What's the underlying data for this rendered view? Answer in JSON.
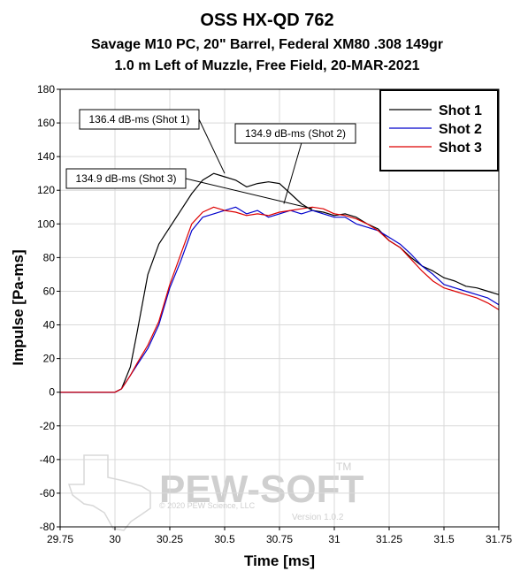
{
  "chart_data": {
    "type": "line",
    "title": "OSS HX-QD 762",
    "subtitle_1": "Savage M10 PC, 20\" Barrel, Federal XM80 .308 149gr",
    "subtitle_2": "1.0 m Left of Muzzle, Free Field, 20-MAR-2021",
    "xlabel": "Time [ms]",
    "ylabel": "Impulse [Pa-ms]",
    "xlim": [
      29.75,
      31.75
    ],
    "ylim": [
      -80,
      180
    ],
    "xticks": [
      "29.75",
      "30",
      "30.25",
      "30.5",
      "30.75",
      "31",
      "31.25",
      "31.5",
      "31.75"
    ],
    "yticks": [
      "180",
      "160",
      "140",
      "120",
      "100",
      "80",
      "60",
      "40",
      "20",
      "0",
      "-20",
      "-40",
      "-60",
      "-80"
    ],
    "grid": true,
    "legend_position": "top-right",
    "series": [
      {
        "name": "Shot 1",
        "color": "#000000",
        "x": [
          29.75,
          30.0,
          30.03,
          30.07,
          30.1,
          30.15,
          30.2,
          30.25,
          30.3,
          30.35,
          30.4,
          30.45,
          30.5,
          30.55,
          30.6,
          30.65,
          30.7,
          30.75,
          30.8,
          30.85,
          30.9,
          30.95,
          31.0,
          31.05,
          31.1,
          31.15,
          31.2,
          31.25,
          31.3,
          31.35,
          31.4,
          31.45,
          31.5,
          31.55,
          31.6,
          31.65,
          31.7,
          31.75
        ],
        "y": [
          0,
          0,
          2,
          15,
          35,
          70,
          88,
          98,
          108,
          118,
          126,
          130,
          128,
          126,
          122,
          124,
          125,
          124,
          118,
          112,
          108,
          107,
          105,
          106,
          104,
          100,
          97,
          90,
          86,
          80,
          75,
          72,
          68,
          66,
          63,
          62,
          60,
          58
        ]
      },
      {
        "name": "Shot 2",
        "color": "#0000cc",
        "x": [
          29.75,
          30.0,
          30.03,
          30.07,
          30.1,
          30.15,
          30.2,
          30.25,
          30.3,
          30.35,
          30.4,
          30.45,
          30.5,
          30.55,
          30.6,
          30.65,
          30.7,
          30.75,
          30.8,
          30.85,
          30.9,
          30.95,
          31.0,
          31.05,
          31.1,
          31.15,
          31.2,
          31.25,
          31.3,
          31.35,
          31.4,
          31.45,
          31.5,
          31.55,
          31.6,
          31.65,
          31.7,
          31.75
        ],
        "y": [
          0,
          0,
          2,
          10,
          16,
          26,
          40,
          62,
          78,
          96,
          104,
          106,
          108,
          110,
          106,
          108,
          104,
          106,
          108,
          106,
          108,
          106,
          104,
          104,
          100,
          98,
          96,
          92,
          88,
          82,
          75,
          70,
          64,
          62,
          60,
          58,
          56,
          52
        ]
      },
      {
        "name": "Shot 3",
        "color": "#dd0000",
        "x": [
          29.75,
          30.0,
          30.03,
          30.07,
          30.1,
          30.15,
          30.2,
          30.25,
          30.3,
          30.35,
          30.4,
          30.45,
          30.5,
          30.55,
          30.6,
          30.65,
          30.7,
          30.75,
          30.8,
          30.85,
          30.9,
          30.95,
          31.0,
          31.05,
          31.1,
          31.15,
          31.2,
          31.25,
          31.3,
          31.35,
          31.4,
          31.45,
          31.5,
          31.55,
          31.6,
          31.65,
          31.7,
          31.75
        ],
        "y": [
          0,
          0,
          2,
          10,
          17,
          28,
          42,
          64,
          82,
          100,
          107,
          110,
          108,
          107,
          105,
          106,
          105,
          107,
          108,
          109,
          110,
          109,
          106,
          105,
          103,
          100,
          96,
          90,
          86,
          79,
          72,
          66,
          62,
          60,
          58,
          56,
          53,
          49
        ]
      }
    ],
    "annotations": [
      {
        "text": "136.4 dB-ms (Shot 1)",
        "point_x": 30.5,
        "point_y": 130
      },
      {
        "text": "134.9 dB-ms (Shot 2)",
        "point_x": 30.77,
        "point_y": 112
      },
      {
        "text": "134.9 dB-ms (Shot 3)",
        "point_x": 30.9,
        "point_y": 109
      }
    ],
    "watermark": {
      "brand": "PEW-SOFT",
      "trademark": "TM",
      "copyright": "© 2020 PEW Science, LLC",
      "version": "Version 1.0.2"
    }
  }
}
